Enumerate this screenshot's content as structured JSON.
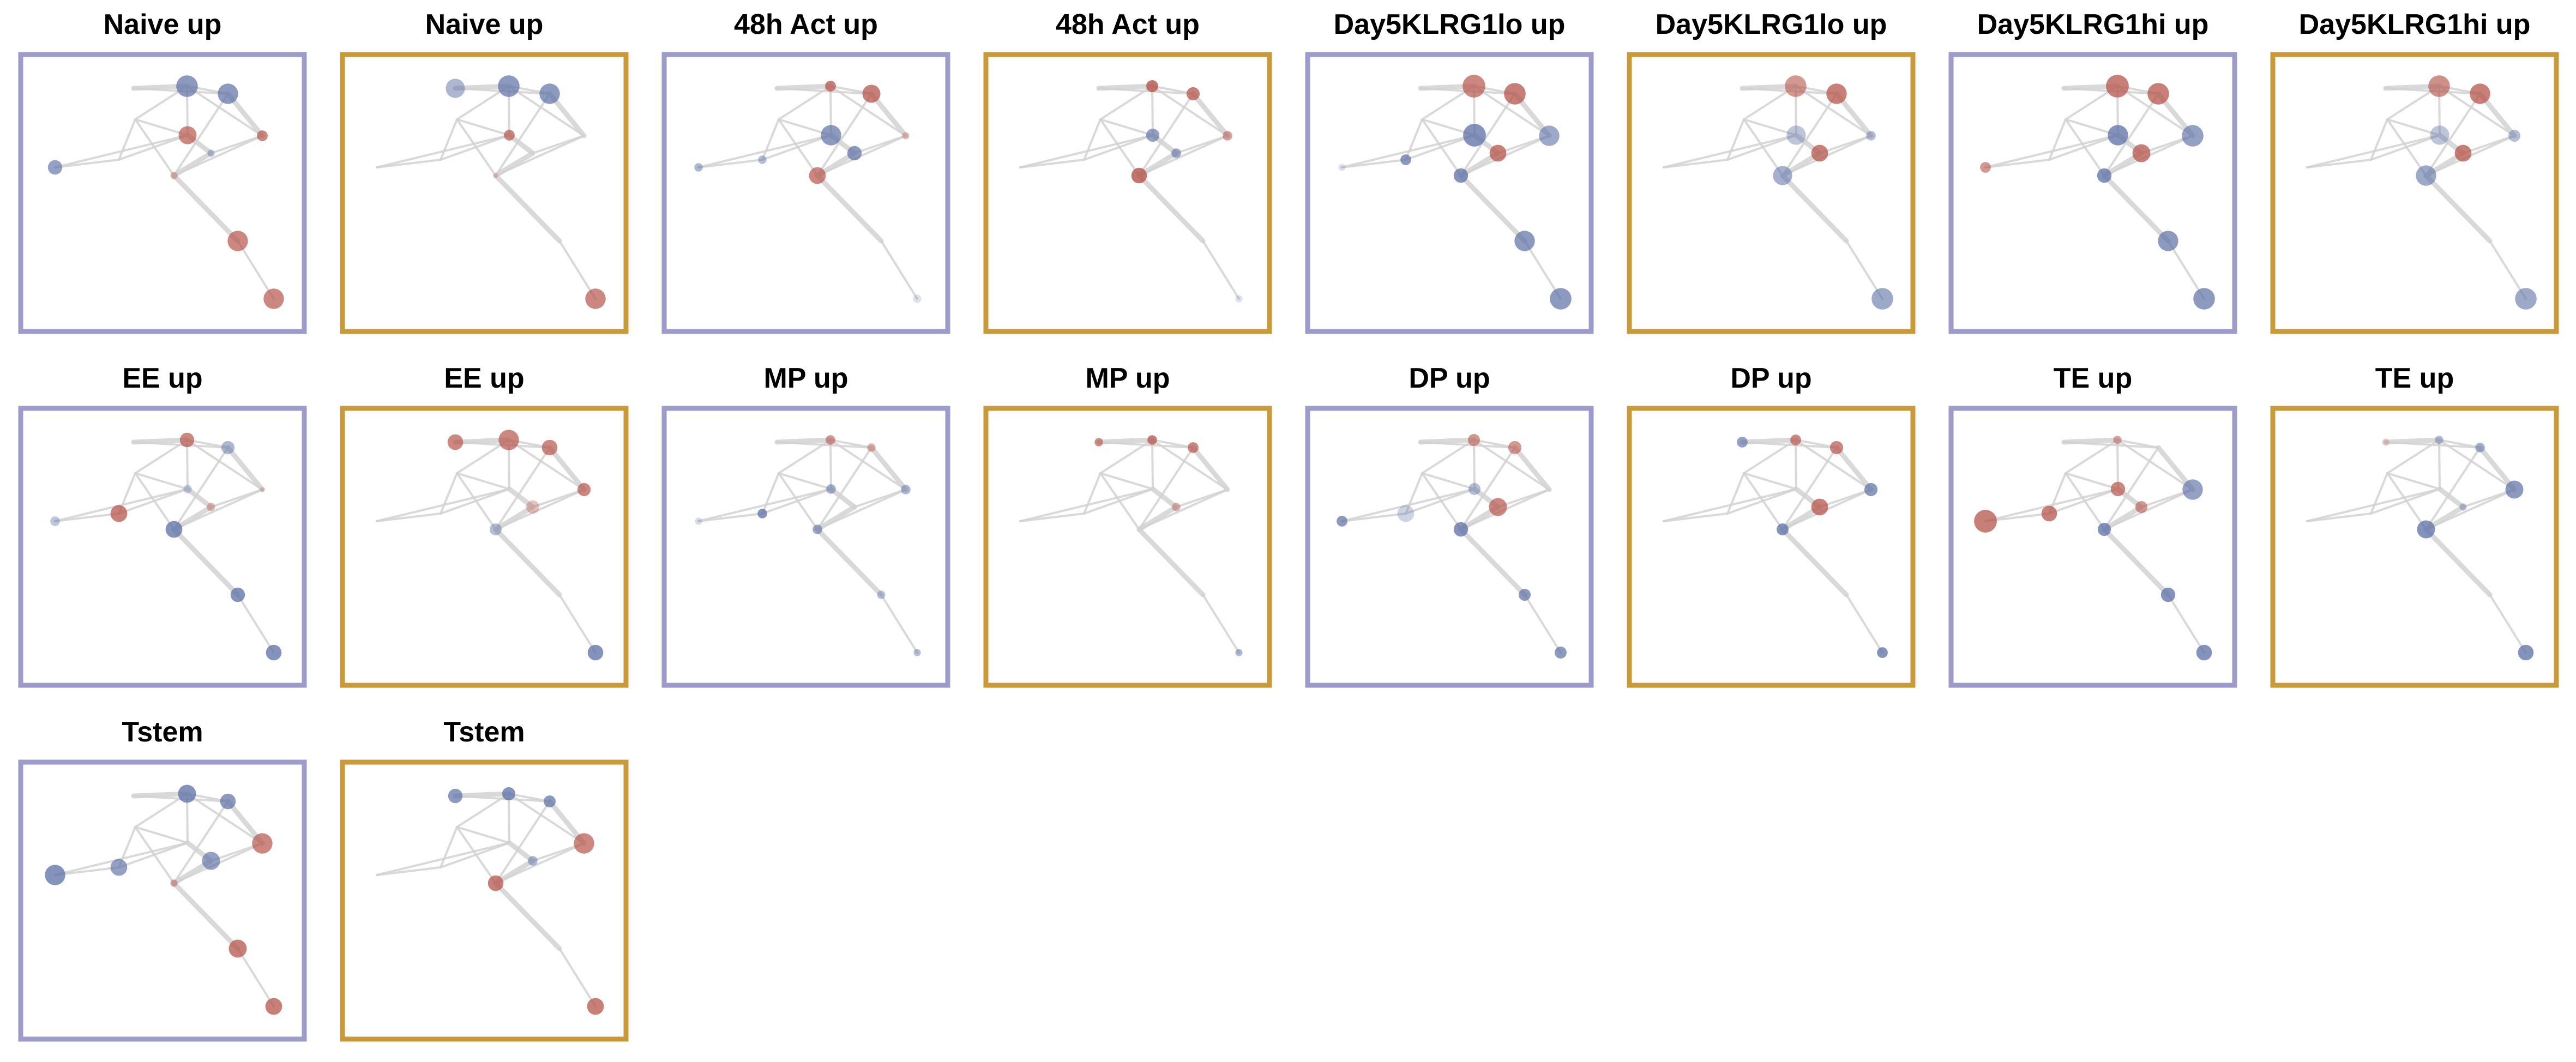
{
  "panel_colors": {
    "purple": "#9c9bcc",
    "gold": "#c99a3a"
  },
  "node_colors": {
    "red": "#b5544a",
    "blue": "#5b6fa5",
    "edge": "#d3d3d3"
  },
  "nodes": [
    "n1",
    "n2",
    "n3",
    "n4",
    "n5",
    "n6",
    "n7",
    "n8",
    "n9",
    "n10",
    "n11",
    "n12"
  ],
  "edges": [
    [
      "n2",
      "n3"
    ],
    [
      "n2",
      "n4"
    ],
    [
      "n3",
      "n4"
    ],
    [
      "n3",
      "n5"
    ],
    [
      "n4",
      "n5"
    ],
    [
      "n4",
      "n6"
    ],
    [
      "n5",
      "n6"
    ],
    [
      "n5",
      "n7"
    ],
    [
      "n6",
      "n7"
    ],
    [
      "n3",
      "n9"
    ],
    [
      "n3",
      "n8"
    ],
    [
      "n8",
      "n9"
    ],
    [
      "n9",
      "n7"
    ],
    [
      "n8",
      "n10"
    ],
    [
      "n10",
      "n1"
    ],
    [
      "n9",
      "n10"
    ],
    [
      "n6",
      "n11"
    ],
    [
      "n11",
      "n12"
    ],
    [
      "n8",
      "n6"
    ],
    [
      "n1",
      "n9"
    ]
  ],
  "panels": [
    {
      "title": "Naive up",
      "frame": "purple",
      "nodes": {
        "n1": [
          "b",
          0.6,
          0.65
        ],
        "n3": [
          "b",
          0.9,
          0.7
        ],
        "n4": [
          "b",
          0.85,
          0.7
        ],
        "n5": [
          "r",
          0.45,
          0.7
        ],
        "n6": [
          "r",
          0.3,
          0.4
        ],
        "n7": [
          "b",
          0.3,
          0.4
        ],
        "n9": [
          "r",
          0.75,
          0.7
        ],
        "n11": [
          "r",
          0.85,
          0.7
        ],
        "n12": [
          "r",
          0.85,
          0.7
        ]
      }
    },
    {
      "title": "Naive up",
      "frame": "gold",
      "nodes": {
        "n2": [
          "b",
          0.8,
          0.5
        ],
        "n3": [
          "b",
          0.9,
          0.7
        ],
        "n4": [
          "b",
          0.85,
          0.7
        ],
        "n9": [
          "r",
          0.45,
          0.7
        ],
        "n6": [
          "r",
          0.2,
          0.3
        ],
        "n12": [
          "r",
          0.85,
          0.7
        ]
      }
    },
    {
      "title": "48h Act up",
      "frame": "purple",
      "nodes": {
        "n1": [
          "b",
          0.35,
          0.5
        ],
        "n10": [
          "b",
          0.35,
          0.45
        ],
        "n3": [
          "r",
          0.45,
          0.75
        ],
        "n4": [
          "r",
          0.75,
          0.75
        ],
        "n7": [
          "b",
          0.6,
          0.7
        ],
        "n5": [
          "r",
          0.3,
          0.35
        ],
        "n6": [
          "r",
          0.7,
          0.7
        ],
        "n9": [
          "b",
          0.85,
          0.7
        ],
        "n12": [
          "b",
          0.35,
          0.2
        ]
      }
    },
    {
      "title": "48h Act up",
      "frame": "gold",
      "nodes": {
        "n3": [
          "r",
          0.5,
          0.8
        ],
        "n4": [
          "r",
          0.55,
          0.75
        ],
        "n5": [
          "r",
          0.4,
          0.55
        ],
        "n6": [
          "r",
          0.65,
          0.8
        ],
        "n7": [
          "b",
          0.4,
          0.6
        ],
        "n9": [
          "b",
          0.55,
          0.65
        ],
        "n12": [
          "b",
          0.3,
          0.2
        ]
      }
    },
    {
      "title": "Day5KLRG1lo up",
      "frame": "purple",
      "nodes": {
        "n1": [
          "b",
          0.3,
          0.2
        ],
        "n10": [
          "b",
          0.45,
          0.7
        ],
        "n3": [
          "r",
          0.95,
          0.7
        ],
        "n4": [
          "r",
          0.9,
          0.75
        ],
        "n5": [
          "b",
          0.85,
          0.6
        ],
        "n6": [
          "b",
          0.6,
          0.75
        ],
        "n7": [
          "r",
          0.7,
          0.75
        ],
        "n9": [
          "b",
          0.95,
          0.75
        ],
        "n11": [
          "b",
          0.85,
          0.7
        ],
        "n12": [
          "b",
          0.9,
          0.7
        ]
      }
    },
    {
      "title": "Day5KLRG1lo up",
      "frame": "gold",
      "nodes": {
        "n3": [
          "r",
          0.9,
          0.6
        ],
        "n4": [
          "r",
          0.85,
          0.75
        ],
        "n5": [
          "b",
          0.4,
          0.45
        ],
        "n6": [
          "b",
          0.8,
          0.55
        ],
        "n7": [
          "r",
          0.7,
          0.75
        ],
        "n9": [
          "b",
          0.8,
          0.4
        ],
        "n12": [
          "b",
          0.9,
          0.6
        ]
      }
    },
    {
      "title": "Day5KLRG1hi up",
      "frame": "purple",
      "nodes": {
        "n1": [
          "r",
          0.45,
          0.6
        ],
        "n3": [
          "r",
          0.95,
          0.75
        ],
        "n4": [
          "r",
          0.9,
          0.75
        ],
        "n5": [
          "b",
          0.9,
          0.65
        ],
        "n6": [
          "b",
          0.6,
          0.75
        ],
        "n7": [
          "r",
          0.75,
          0.75
        ],
        "n9": [
          "b",
          0.85,
          0.75
        ],
        "n11": [
          "b",
          0.85,
          0.7
        ],
        "n12": [
          "b",
          0.9,
          0.7
        ]
      }
    },
    {
      "title": "Day5KLRG1hi up",
      "frame": "gold",
      "nodes": {
        "n3": [
          "r",
          0.9,
          0.65
        ],
        "n4": [
          "r",
          0.85,
          0.75
        ],
        "n5": [
          "b",
          0.5,
          0.45
        ],
        "n6": [
          "b",
          0.85,
          0.6
        ],
        "n7": [
          "r",
          0.7,
          0.75
        ],
        "n9": [
          "b",
          0.8,
          0.4
        ],
        "n12": [
          "b",
          0.9,
          0.6
        ]
      }
    },
    {
      "title": "EE up",
      "frame": "purple",
      "nodes": {
        "n1": [
          "b",
          0.4,
          0.4
        ],
        "n10": [
          "r",
          0.7,
          0.75
        ],
        "n3": [
          "r",
          0.6,
          0.7
        ],
        "n4": [
          "b",
          0.55,
          0.5
        ],
        "n5": [
          "r",
          0.2,
          0.3
        ],
        "n6": [
          "b",
          0.7,
          0.75
        ],
        "n7": [
          "r",
          0.35,
          0.4
        ],
        "n9": [
          "b",
          0.35,
          0.35
        ],
        "n11": [
          "b",
          0.6,
          0.75
        ],
        "n12": [
          "b",
          0.65,
          0.75
        ]
      }
    },
    {
      "title": "EE up",
      "frame": "gold",
      "nodes": {
        "n2": [
          "r",
          0.65,
          0.7
        ],
        "n3": [
          "r",
          0.85,
          0.7
        ],
        "n4": [
          "r",
          0.65,
          0.7
        ],
        "n5": [
          "r",
          0.55,
          0.7
        ],
        "n6": [
          "b",
          0.5,
          0.45
        ],
        "n7": [
          "r",
          0.55,
          0.35
        ],
        "n12": [
          "b",
          0.65,
          0.75
        ]
      }
    },
    {
      "title": "MP up",
      "frame": "purple",
      "nodes": {
        "n1": [
          "b",
          0.3,
          0.25
        ],
        "n10": [
          "b",
          0.4,
          0.75
        ],
        "n3": [
          "r",
          0.4,
          0.6
        ],
        "n4": [
          "r",
          0.35,
          0.45
        ],
        "n5": [
          "b",
          0.4,
          0.5
        ],
        "n6": [
          "b",
          0.4,
          0.6
        ],
        "n9": [
          "b",
          0.4,
          0.55
        ],
        "n11": [
          "b",
          0.35,
          0.4
        ],
        "n12": [
          "b",
          0.3,
          0.45
        ]
      }
    },
    {
      "title": "MP up",
      "frame": "gold",
      "nodes": {
        "n2": [
          "r",
          0.35,
          0.65
        ],
        "n3": [
          "r",
          0.4,
          0.75
        ],
        "n4": [
          "r",
          0.45,
          0.7
        ],
        "n7": [
          "r",
          0.35,
          0.45
        ],
        "n12": [
          "b",
          0.3,
          0.5
        ]
      }
    },
    {
      "title": "DP up",
      "frame": "purple",
      "nodes": {
        "n1": [
          "b",
          0.45,
          0.7
        ],
        "n10": [
          "b",
          0.7,
          0.3
        ],
        "n3": [
          "r",
          0.5,
          0.6
        ],
        "n4": [
          "r",
          0.55,
          0.6
        ],
        "n6": [
          "b",
          0.6,
          0.75
        ],
        "n7": [
          "r",
          0.75,
          0.7
        ],
        "n9": [
          "b",
          0.5,
          0.45
        ],
        "n11": [
          "b",
          0.5,
          0.7
        ],
        "n12": [
          "b",
          0.5,
          0.7
        ]
      }
    },
    {
      "title": "DP up",
      "frame": "gold",
      "nodes": {
        "n2": [
          "b",
          0.45,
          0.65
        ],
        "n3": [
          "r",
          0.45,
          0.7
        ],
        "n4": [
          "r",
          0.55,
          0.7
        ],
        "n5": [
          "b",
          0.55,
          0.7
        ],
        "n6": [
          "b",
          0.5,
          0.75
        ],
        "n7": [
          "r",
          0.7,
          0.75
        ],
        "n12": [
          "b",
          0.45,
          0.75
        ]
      }
    },
    {
      "title": "TE up",
      "frame": "purple",
      "nodes": {
        "n1": [
          "r",
          0.95,
          0.75
        ],
        "n10": [
          "r",
          0.65,
          0.75
        ],
        "n3": [
          "r",
          0.35,
          0.5
        ],
        "n5": [
          "b",
          0.85,
          0.65
        ],
        "n6": [
          "b",
          0.55,
          0.75
        ],
        "n7": [
          "r",
          0.5,
          0.6
        ],
        "n9": [
          "r",
          0.6,
          0.7
        ],
        "n11": [
          "b",
          0.6,
          0.75
        ],
        "n12": [
          "b",
          0.65,
          0.75
        ]
      }
    },
    {
      "title": "TE up",
      "frame": "gold",
      "nodes": {
        "n2": [
          "r",
          0.3,
          0.25
        ],
        "n3": [
          "b",
          0.35,
          0.45
        ],
        "n4": [
          "b",
          0.4,
          0.55
        ],
        "n5": [
          "b",
          0.75,
          0.7
        ],
        "n6": [
          "b",
          0.75,
          0.75
        ],
        "n7": [
          "b",
          0.3,
          0.4
        ],
        "n12": [
          "b",
          0.65,
          0.75
        ]
      }
    },
    {
      "title": "Tstem",
      "frame": "purple",
      "nodes": {
        "n1": [
          "b",
          0.85,
          0.75
        ],
        "n10": [
          "b",
          0.7,
          0.65
        ],
        "n3": [
          "b",
          0.75,
          0.75
        ],
        "n4": [
          "b",
          0.65,
          0.7
        ],
        "n5": [
          "r",
          0.85,
          0.7
        ],
        "n6": [
          "r",
          0.3,
          0.5
        ],
        "n7": [
          "b",
          0.75,
          0.65
        ],
        "n11": [
          "r",
          0.75,
          0.75
        ],
        "n12": [
          "r",
          0.7,
          0.75
        ]
      }
    },
    {
      "title": "Tstem",
      "frame": "gold",
      "nodes": {
        "n2": [
          "b",
          0.6,
          0.7
        ],
        "n3": [
          "b",
          0.55,
          0.75
        ],
        "n4": [
          "b",
          0.5,
          0.7
        ],
        "n5": [
          "r",
          0.85,
          0.7
        ],
        "n6": [
          "r",
          0.65,
          0.75
        ],
        "n7": [
          "b",
          0.4,
          0.5
        ],
        "n12": [
          "r",
          0.7,
          0.75
        ]
      }
    }
  ]
}
